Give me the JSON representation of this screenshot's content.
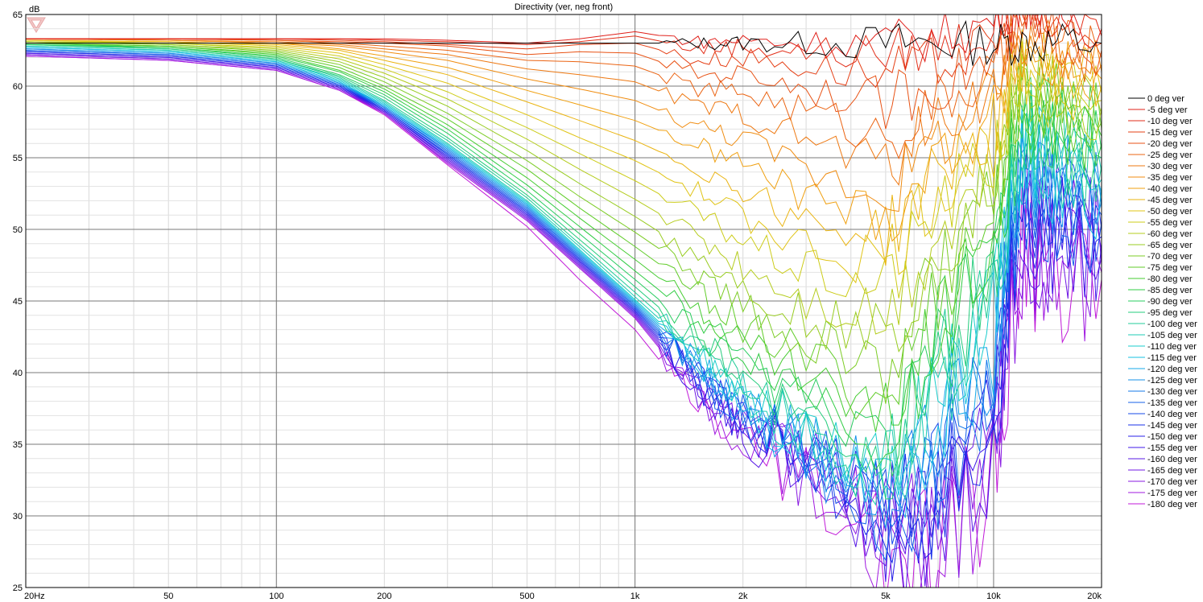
{
  "chart_data": {
    "type": "line",
    "title": "Directivity (ver, neg front)",
    "ylabel": "dB",
    "x_scale": "log",
    "xlim": [
      20,
      20000
    ],
    "ylim": [
      25,
      65
    ],
    "x_ticks": [
      {
        "value": 20,
        "label": "20Hz"
      },
      {
        "value": 50,
        "label": "50"
      },
      {
        "value": 100,
        "label": "100"
      },
      {
        "value": 200,
        "label": "200"
      },
      {
        "value": 500,
        "label": "500"
      },
      {
        "value": 1000,
        "label": "1k"
      },
      {
        "value": 2000,
        "label": "2k"
      },
      {
        "value": 5000,
        "label": "5k"
      },
      {
        "value": 10000,
        "label": "10k"
      },
      {
        "value": 20000,
        "label": "20k"
      }
    ],
    "y_ticks": [
      {
        "value": 25,
        "label": "25"
      },
      {
        "value": 30,
        "label": "30"
      },
      {
        "value": 35,
        "label": "35"
      },
      {
        "value": 40,
        "label": "40"
      },
      {
        "value": 45,
        "label": "45"
      },
      {
        "value": 50,
        "label": "50"
      },
      {
        "value": 55,
        "label": "55"
      },
      {
        "value": 60,
        "label": "60"
      },
      {
        "value": 65,
        "label": "65"
      }
    ],
    "grid": true,
    "legend_position": "right",
    "reference_level_db": 63,
    "x": [
      20,
      50,
      100,
      150,
      200,
      300,
      500,
      700,
      1000,
      1500,
      2000,
      3000,
      5000,
      7000,
      10000,
      12000,
      15000,
      20000
    ],
    "series": [
      {
        "name": "0 deg ver",
        "color": "#000000",
        "values": [
          63.0,
          63.0,
          63.0,
          63.0,
          63.0,
          63.0,
          63.0,
          63.0,
          63.0,
          63.0,
          63.0,
          63.0,
          63.0,
          63.0,
          63.0,
          63.0,
          63.0,
          63.0
        ]
      },
      {
        "name": "-5 deg ver",
        "color": "#e0201a",
        "values": [
          63.3,
          63.3,
          63.3,
          63.3,
          63.3,
          63.2,
          63.0,
          63.3,
          63.8,
          63.1,
          63.2,
          63.0,
          63.1,
          63.4,
          64.5,
          66,
          65,
          64
        ]
      },
      {
        "name": "-10 deg ver",
        "color": "#e22e18",
        "values": [
          63.3,
          63.3,
          63.3,
          63.3,
          63.2,
          63.1,
          62.9,
          63.1,
          63.5,
          62.6,
          62.8,
          62.4,
          62.3,
          62.8,
          63.8,
          65.5,
          64.5,
          63.5
        ]
      },
      {
        "name": "-15 deg ver",
        "color": "#e54016",
        "values": [
          63.3,
          63.3,
          63.3,
          63.2,
          63.1,
          62.9,
          62.6,
          62.9,
          63.0,
          61.8,
          62.0,
          61.4,
          60.8,
          61.6,
          62.8,
          65,
          64,
          63
        ]
      },
      {
        "name": "-20 deg ver",
        "color": "#e85214",
        "values": [
          63.3,
          63.3,
          63.2,
          63.1,
          63.0,
          62.8,
          62.2,
          62.4,
          62.3,
          60.8,
          60.9,
          60.0,
          58.8,
          60.2,
          61.8,
          64.5,
          63.5,
          62.5
        ]
      },
      {
        "name": "-25 deg ver",
        "color": "#eb6413",
        "values": [
          63.3,
          63.3,
          63.2,
          63.0,
          62.8,
          62.5,
          61.8,
          61.7,
          61.4,
          59.8,
          59.6,
          58.3,
          56.5,
          58.8,
          60.8,
          64,
          63,
          62
        ]
      },
      {
        "name": "-30 deg ver",
        "color": "#ee7811",
        "values": [
          63.3,
          63.2,
          63.1,
          62.9,
          62.6,
          62.2,
          61.2,
          60.8,
          60.3,
          58.6,
          58.1,
          56.3,
          54.5,
          57.5,
          60.0,
          63.5,
          62.5,
          61.5
        ]
      },
      {
        "name": "-35 deg ver",
        "color": "#f08c10",
        "values": [
          63.3,
          63.2,
          63.0,
          62.8,
          62.4,
          61.8,
          60.5,
          59.8,
          59.0,
          57.2,
          56.4,
          54.2,
          52.5,
          56.2,
          59.0,
          63,
          62,
          61
        ]
      },
      {
        "name": "-40 deg ver",
        "color": "#f0a010",
        "values": [
          63.3,
          63.2,
          63.0,
          62.6,
          62.1,
          61.3,
          59.7,
          58.7,
          57.6,
          55.8,
          54.6,
          52.3,
          50.8,
          55.0,
          58.0,
          62.5,
          61.5,
          60.5
        ]
      },
      {
        "name": "-45 deg ver",
        "color": "#eab412",
        "values": [
          63.2,
          63.1,
          62.9,
          62.5,
          61.8,
          60.8,
          58.9,
          57.6,
          56.2,
          54.2,
          52.8,
          50.6,
          49.5,
          54.0,
          57.0,
          62,
          61,
          60
        ]
      },
      {
        "name": "-50 deg ver",
        "color": "#e0c416",
        "values": [
          63.2,
          63.1,
          62.8,
          62.3,
          61.5,
          60.2,
          58.0,
          56.4,
          54.8,
          52.6,
          51.0,
          48.8,
          47.8,
          52.8,
          56.0,
          61.5,
          60.5,
          59.5
        ]
      },
      {
        "name": "-55 deg ver",
        "color": "#cccc18",
        "values": [
          63.2,
          63.0,
          62.7,
          62.1,
          61.2,
          59.6,
          57.1,
          55.3,
          53.4,
          51.0,
          49.2,
          47.0,
          46.0,
          51.5,
          55.0,
          61,
          60,
          59
        ]
      },
      {
        "name": "-60 deg ver",
        "color": "#b4cc1c",
        "values": [
          63.1,
          63.0,
          62.6,
          61.9,
          60.9,
          59.1,
          56.3,
          54.2,
          52.1,
          49.5,
          47.5,
          45.3,
          44.0,
          50.0,
          54.0,
          60.5,
          59.5,
          58.5
        ]
      },
      {
        "name": "-65 deg ver",
        "color": "#98cc20",
        "values": [
          63.1,
          62.9,
          62.5,
          61.7,
          60.6,
          58.6,
          55.5,
          53.2,
          50.9,
          48.1,
          46.0,
          43.8,
          42.0,
          48.5,
          53.0,
          60,
          59,
          58
        ]
      },
      {
        "name": "-70 deg ver",
        "color": "#7ccc24",
        "values": [
          63.1,
          62.9,
          62.4,
          61.5,
          60.3,
          58.1,
          54.8,
          52.3,
          49.8,
          46.8,
          44.6,
          42.3,
          40.0,
          47.0,
          52.0,
          59.5,
          58.5,
          57.5
        ]
      },
      {
        "name": "-75 deg ver",
        "color": "#60cc28",
        "values": [
          63.0,
          62.8,
          62.3,
          61.3,
          60.0,
          57.7,
          54.2,
          51.5,
          48.8,
          45.6,
          43.3,
          41.0,
          38.0,
          45.5,
          51.0,
          59,
          58,
          57
        ]
      },
      {
        "name": "-80 deg ver",
        "color": "#44cc30",
        "values": [
          63.0,
          62.8,
          62.2,
          61.1,
          59.8,
          57.3,
          53.6,
          50.8,
          47.9,
          44.5,
          42.2,
          39.8,
          36.5,
          44.0,
          50.0,
          58.5,
          57.5,
          56.5
        ]
      },
      {
        "name": "-85 deg ver",
        "color": "#30cc44",
        "values": [
          63.0,
          62.7,
          62.1,
          61.0,
          59.6,
          57.0,
          53.1,
          50.2,
          47.1,
          43.6,
          41.2,
          38.8,
          35.2,
          43.0,
          49.0,
          58,
          57,
          56
        ]
      },
      {
        "name": "-90 deg ver",
        "color": "#28cc60",
        "values": [
          62.9,
          62.7,
          62.0,
          60.8,
          59.4,
          56.7,
          52.7,
          49.7,
          46.5,
          42.8,
          40.4,
          37.9,
          34.2,
          42.0,
          48.0,
          57.5,
          56.5,
          55.5
        ]
      },
      {
        "name": "-95 deg ver",
        "color": "#24cc7c",
        "values": [
          62.9,
          62.6,
          61.9,
          60.7,
          59.2,
          56.4,
          52.4,
          49.3,
          46.0,
          42.2,
          39.7,
          37.2,
          33.4,
          41.0,
          47.0,
          57,
          56,
          55
        ]
      },
      {
        "name": "-100 deg ver",
        "color": "#20cc98",
        "values": [
          62.9,
          62.6,
          61.9,
          60.6,
          59.0,
          56.2,
          52.2,
          49.0,
          45.6,
          41.7,
          39.1,
          36.6,
          32.8,
          40.0,
          46.0,
          56.5,
          55.5,
          54.5
        ]
      },
      {
        "name": "-105 deg ver",
        "color": "#1cccb4",
        "values": [
          62.8,
          62.5,
          61.8,
          60.5,
          58.9,
          56.0,
          52.0,
          48.8,
          45.3,
          41.3,
          38.6,
          36.1,
          32.3,
          39.0,
          45.0,
          56,
          55,
          54
        ]
      },
      {
        "name": "-110 deg ver",
        "color": "#18cccc",
        "values": [
          62.8,
          62.5,
          61.8,
          60.4,
          58.8,
          55.9,
          51.9,
          48.6,
          45.1,
          41.0,
          38.2,
          35.7,
          31.9,
          38.0,
          44.0,
          55.5,
          54.5,
          53.5
        ]
      },
      {
        "name": "-115 deg ver",
        "color": "#16c0e0",
        "values": [
          62.7,
          62.4,
          61.7,
          60.3,
          58.7,
          55.8,
          51.8,
          48.5,
          45.0,
          40.8,
          37.9,
          35.4,
          31.6,
          37.0,
          43.0,
          55,
          54,
          53
        ]
      },
      {
        "name": "-120 deg ver",
        "color": "#14a8e8",
        "values": [
          62.7,
          62.4,
          61.7,
          60.3,
          58.6,
          55.7,
          51.7,
          48.4,
          44.9,
          40.6,
          37.6,
          35.1,
          31.3,
          36.0,
          42.0,
          54.5,
          53.5,
          52.5
        ]
      },
      {
        "name": "-125 deg ver",
        "color": "#1490ea",
        "values": [
          62.6,
          62.3,
          61.6,
          60.2,
          58.6,
          55.6,
          51.6,
          48.3,
          44.8,
          40.4,
          37.4,
          34.8,
          31.0,
          35.0,
          41.0,
          54,
          53,
          52
        ]
      },
      {
        "name": "-130 deg ver",
        "color": "#1478ea",
        "values": [
          62.6,
          62.3,
          61.6,
          60.2,
          58.5,
          55.5,
          51.5,
          48.2,
          44.7,
          40.2,
          37.2,
          34.6,
          30.7,
          34.0,
          40.0,
          53.5,
          52.5,
          51.5
        ]
      },
      {
        "name": "-135 deg ver",
        "color": "#1460ea",
        "values": [
          62.5,
          62.2,
          61.5,
          60.1,
          58.5,
          55.4,
          51.4,
          48.1,
          44.6,
          40.0,
          37.0,
          34.4,
          30.4,
          33.0,
          39.0,
          53,
          52,
          51
        ]
      },
      {
        "name": "-140 deg ver",
        "color": "#1448ea",
        "values": [
          62.5,
          62.2,
          61.5,
          60.1,
          58.4,
          55.3,
          51.3,
          48.0,
          44.5,
          39.8,
          36.8,
          34.2,
          30.1,
          32.0,
          38.0,
          52.5,
          51.5,
          50.5
        ]
      },
      {
        "name": "-145 deg ver",
        "color": "#1830e8",
        "values": [
          62.4,
          62.1,
          61.4,
          60.0,
          58.4,
          55.2,
          51.2,
          47.9,
          44.4,
          39.6,
          36.6,
          34.0,
          29.8,
          31.0,
          37.0,
          52,
          51,
          50
        ]
      },
      {
        "name": "-150 deg ver",
        "color": "#2820e8",
        "values": [
          62.4,
          62.1,
          61.4,
          60.0,
          58.3,
          55.1,
          51.1,
          47.8,
          44.3,
          39.4,
          36.4,
          33.8,
          29.5,
          30.0,
          36.0,
          51.5,
          50.5,
          49.5
        ]
      },
      {
        "name": "-155 deg ver",
        "color": "#4018e8",
        "values": [
          62.3,
          62.0,
          61.3,
          59.9,
          58.3,
          55.0,
          51.0,
          47.7,
          44.2,
          39.2,
          36.2,
          33.6,
          29.2,
          29.5,
          35.5,
          51,
          50,
          49
        ]
      },
      {
        "name": "-160 deg ver",
        "color": "#5818e6",
        "values": [
          62.3,
          62.0,
          61.3,
          59.9,
          58.2,
          54.9,
          50.9,
          47.6,
          44.1,
          39.0,
          36.0,
          33.4,
          28.9,
          29.0,
          35.0,
          50.5,
          49.5,
          48.5
        ]
      },
      {
        "name": "-165 deg ver",
        "color": "#7018e4",
        "values": [
          62.2,
          61.9,
          61.2,
          59.8,
          58.2,
          54.8,
          50.8,
          47.5,
          44.0,
          38.8,
          35.8,
          33.2,
          28.6,
          28.5,
          34.5,
          50,
          49,
          48
        ]
      },
      {
        "name": "-170 deg ver",
        "color": "#8818e2",
        "values": [
          62.2,
          61.9,
          61.2,
          59.8,
          58.1,
          54.7,
          50.7,
          47.4,
          43.9,
          38.6,
          35.6,
          33.0,
          28.3,
          28.0,
          34.0,
          49.5,
          48.5,
          47.5
        ]
      },
      {
        "name": "-175 deg ver",
        "color": "#a018e0",
        "values": [
          62.1,
          61.8,
          61.1,
          59.7,
          58.1,
          54.6,
          50.6,
          47.3,
          43.8,
          38.4,
          35.4,
          32.8,
          28.0,
          27.5,
          33.5,
          49,
          48,
          47
        ]
      },
      {
        "name": "-180 deg ver",
        "color": "#c018d8",
        "values": [
          62.1,
          61.8,
          61.1,
          59.7,
          58.0,
          54.5,
          50.2,
          46.5,
          43.0,
          37.5,
          34.5,
          32.0,
          27.5,
          27.0,
          33.0,
          48.5,
          47.5,
          46.5
        ]
      }
    ]
  }
}
